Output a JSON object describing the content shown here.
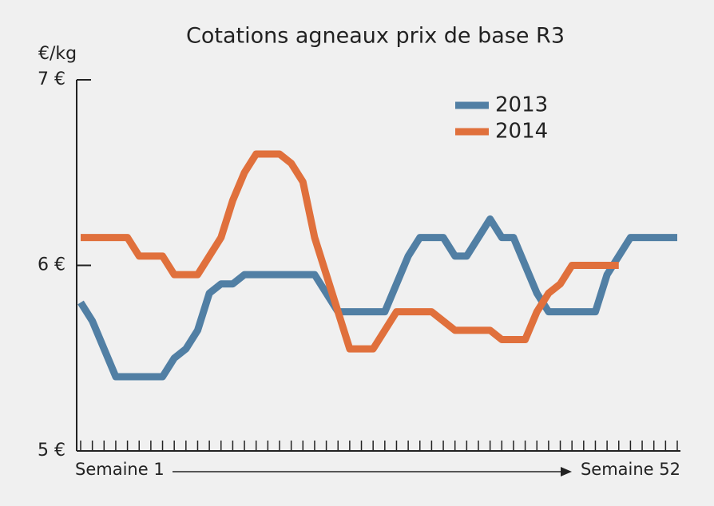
{
  "chart_data": {
    "type": "line",
    "title": "Cotations agneaux prix de base R3",
    "y_label": "€/kg",
    "x_start_label": "Semaine 1",
    "x_end_label": "Semaine 52",
    "x": [
      1,
      2,
      3,
      4,
      5,
      6,
      7,
      8,
      9,
      10,
      11,
      12,
      13,
      14,
      15,
      16,
      17,
      18,
      19,
      20,
      21,
      22,
      23,
      24,
      25,
      26,
      27,
      28,
      29,
      30,
      31,
      32,
      33,
      34,
      35,
      36,
      37,
      38,
      39,
      40,
      41,
      42,
      43,
      44,
      45,
      46,
      47,
      48,
      49,
      50,
      51,
      52
    ],
    "xlim": [
      1,
      52
    ],
    "xticks": [
      1,
      2,
      3,
      4,
      5,
      6,
      7,
      8,
      9,
      10,
      11,
      12,
      13,
      14,
      15,
      16,
      17,
      18,
      19,
      20,
      21,
      22,
      23,
      24,
      25,
      26,
      27,
      28,
      29,
      30,
      31,
      32,
      33,
      34,
      35,
      36,
      37,
      38,
      39,
      40,
      41,
      42,
      43,
      44,
      45,
      46,
      47,
      48,
      49,
      50,
      51,
      52
    ],
    "ylim": [
      5,
      7
    ],
    "yticks": [
      {
        "value": 5,
        "label": "5 €"
      },
      {
        "value": 6,
        "label": "6 €"
      },
      {
        "value": 7,
        "label": "7 €"
      }
    ],
    "legend_position": "upper right",
    "series": [
      {
        "name": "2013",
        "color": "#517fa4",
        "values": [
          5.8,
          5.7,
          5.55,
          5.4,
          5.4,
          5.4,
          5.4,
          5.4,
          5.5,
          5.55,
          5.65,
          5.85,
          5.9,
          5.9,
          5.95,
          5.95,
          5.95,
          5.95,
          5.95,
          5.95,
          5.95,
          5.85,
          5.75,
          5.75,
          5.75,
          5.75,
          5.75,
          5.9,
          6.05,
          6.15,
          6.15,
          6.15,
          6.05,
          6.05,
          6.15,
          6.25,
          6.15,
          6.15,
          6.0,
          5.85,
          5.75,
          5.75,
          5.75,
          5.75,
          5.75,
          5.95,
          6.05,
          6.15,
          6.15,
          6.15,
          6.15,
          6.15
        ]
      },
      {
        "name": "2014",
        "color": "#e0703c",
        "values": [
          6.15,
          6.15,
          6.15,
          6.15,
          6.15,
          6.05,
          6.05,
          6.05,
          5.95,
          5.95,
          5.95,
          6.05,
          6.15,
          6.35,
          6.5,
          6.6,
          6.6,
          6.6,
          6.55,
          6.45,
          6.15,
          5.95,
          5.75,
          5.55,
          5.55,
          5.55,
          5.65,
          5.75,
          5.75,
          5.75,
          5.75,
          5.7,
          5.65,
          5.65,
          5.65,
          5.65,
          5.6,
          5.6,
          5.6,
          5.75,
          5.85,
          5.9,
          6.0,
          6.0,
          6.0,
          6.0,
          6.0,
          null,
          null,
          null,
          null,
          null
        ]
      }
    ]
  }
}
